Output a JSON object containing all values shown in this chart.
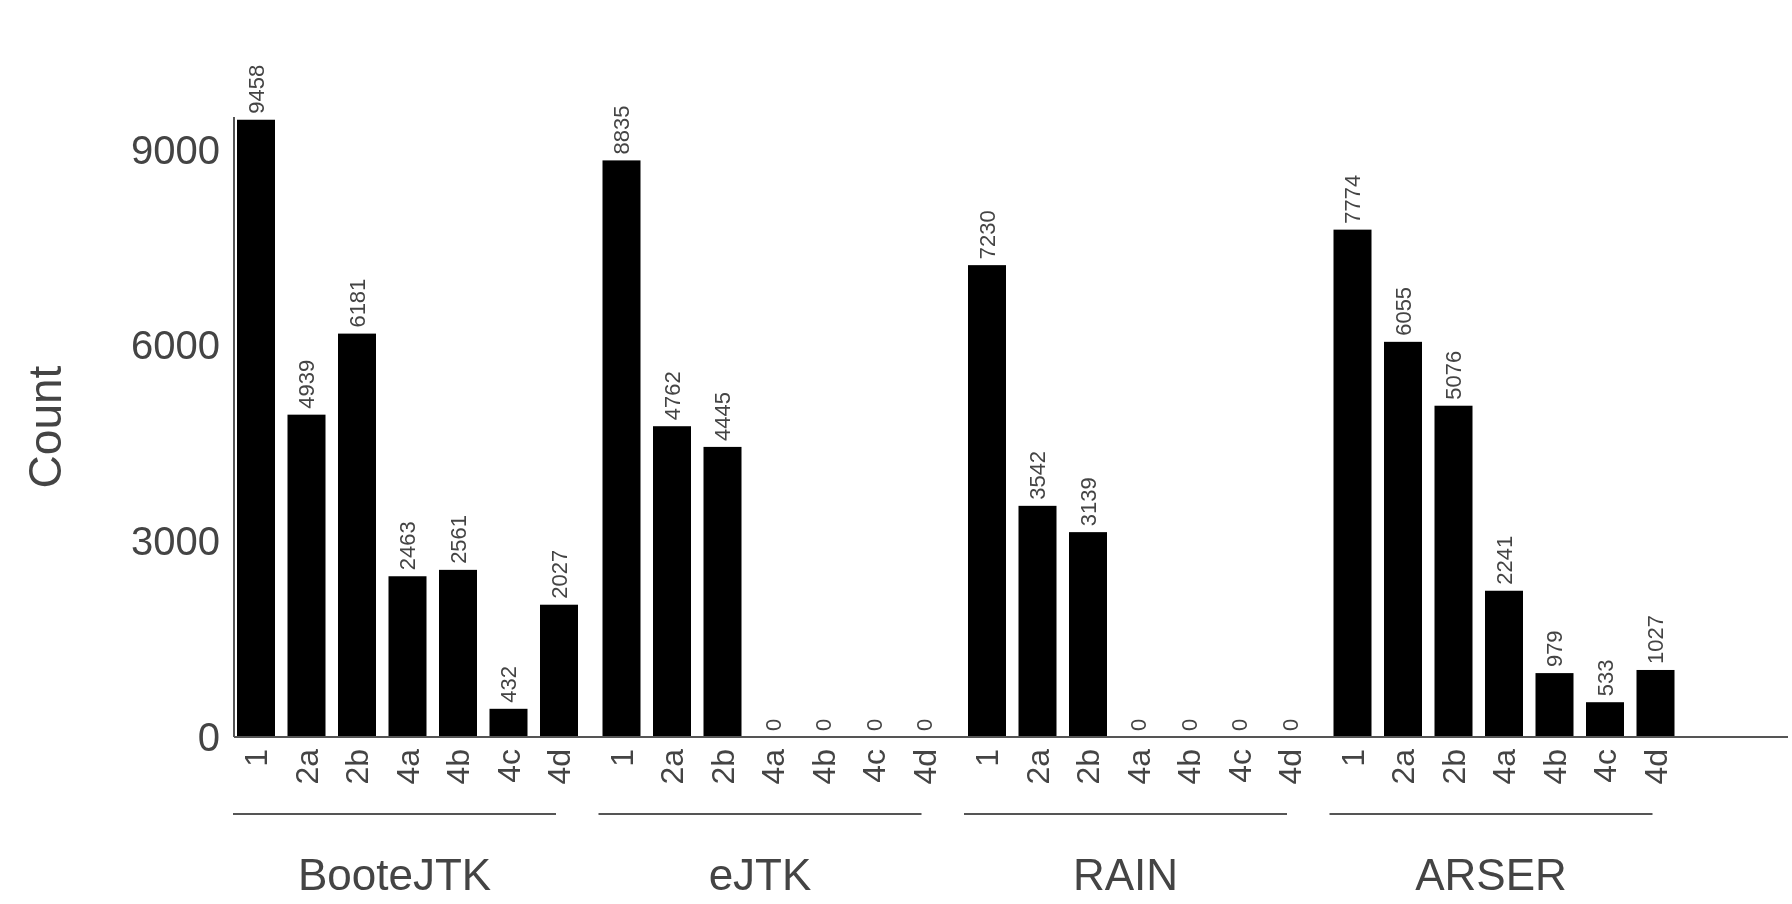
{
  "chart_data": {
    "type": "bar",
    "ylabel": "Count",
    "categories": [
      "1",
      "2a",
      "2b",
      "4a",
      "4b",
      "4c",
      "4d",
      "1",
      "2a",
      "2b",
      "4a",
      "4b",
      "4c",
      "4d",
      "1",
      "2a",
      "2b",
      "4a",
      "4b",
      "4c",
      "4d",
      "1",
      "2a",
      "2b",
      "4a",
      "4b",
      "4c",
      "4d"
    ],
    "values": [
      9458,
      4939,
      6181,
      2463,
      2561,
      432,
      2027,
      8835,
      4762,
      4445,
      0,
      0,
      0,
      0,
      7230,
      3542,
      3139,
      0,
      0,
      0,
      0,
      7774,
      6055,
      5076,
      2241,
      979,
      533,
      1027
    ],
    "color": "#000000",
    "ylim": [
      0,
      9500
    ],
    "yticks": [
      0,
      3000,
      6000,
      9000
    ],
    "grid": false,
    "data_labels": true,
    "annotations": [
      "BooteJTK",
      "eJTK",
      "RAIN",
      "ARSER"
    ]
  }
}
